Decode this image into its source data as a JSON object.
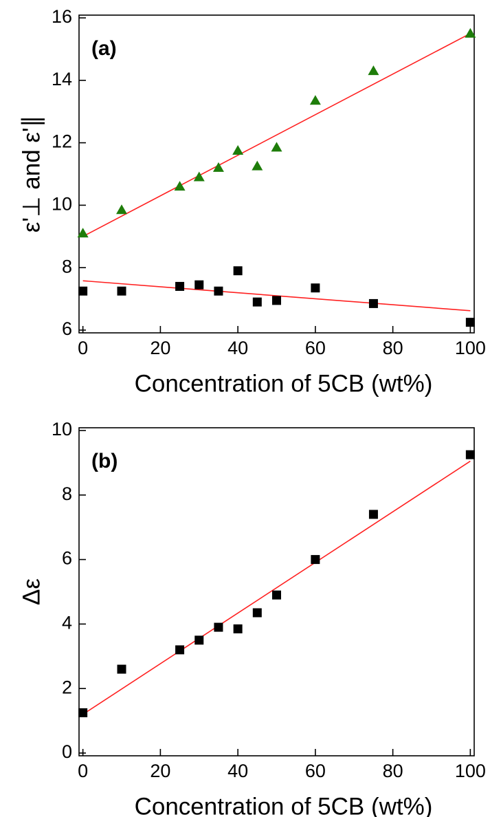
{
  "chart_data": [
    {
      "type": "scatter",
      "annotation": "(a)",
      "xlabel": "Concentration of 5CB (wt%)",
      "ylabel": "ε'⊥ and ε'∥",
      "x": [
        0,
        10,
        25,
        30,
        35,
        40,
        45,
        50,
        60,
        75,
        100
      ],
      "series": [
        {
          "marker": "triangle",
          "color": "#1e7d0a",
          "values": [
            9.1,
            9.85,
            10.6,
            10.9,
            11.2,
            11.75,
            11.25,
            11.85,
            13.35,
            14.3,
            15.5
          ]
        },
        {
          "marker": "square",
          "color": "#000000",
          "values": [
            7.25,
            7.25,
            7.4,
            7.45,
            7.25,
            7.9,
            6.9,
            6.95,
            7.35,
            6.85,
            6.25
          ]
        }
      ],
      "fits": [
        {
          "color": "#ff2020",
          "x": [
            0,
            100
          ],
          "values": [
            9.0,
            15.5
          ]
        },
        {
          "color": "#ff2020",
          "x": [
            0,
            100
          ],
          "values": [
            7.58,
            6.62
          ]
        }
      ],
      "xlim": [
        -1,
        101
      ],
      "xticks": [
        0,
        20,
        40,
        60,
        80,
        100
      ],
      "ylim": [
        6,
        16
      ],
      "yticks": [
        6,
        8,
        10,
        12,
        14,
        16
      ]
    },
    {
      "type": "scatter",
      "annotation": "(b)",
      "xlabel": "Concentration of 5CB (wt%)",
      "ylabel": "Δε",
      "x": [
        0,
        10,
        25,
        30,
        35,
        40,
        45,
        50,
        60,
        75,
        100
      ],
      "series": [
        {
          "marker": "square",
          "color": "#000000",
          "values": [
            1.25,
            2.6,
            3.2,
            3.5,
            3.9,
            3.85,
            4.35,
            4.9,
            6.0,
            7.4,
            9.25
          ]
        }
      ],
      "fits": [
        {
          "color": "#ff2020",
          "x": [
            0,
            100
          ],
          "values": [
            1.2,
            9.05
          ]
        }
      ],
      "xlim": [
        -1,
        101
      ],
      "xticks": [
        0,
        20,
        40,
        60,
        80,
        100
      ],
      "ylim": [
        0,
        10
      ],
      "yticks": [
        0,
        2,
        4,
        6,
        8,
        10
      ]
    }
  ]
}
